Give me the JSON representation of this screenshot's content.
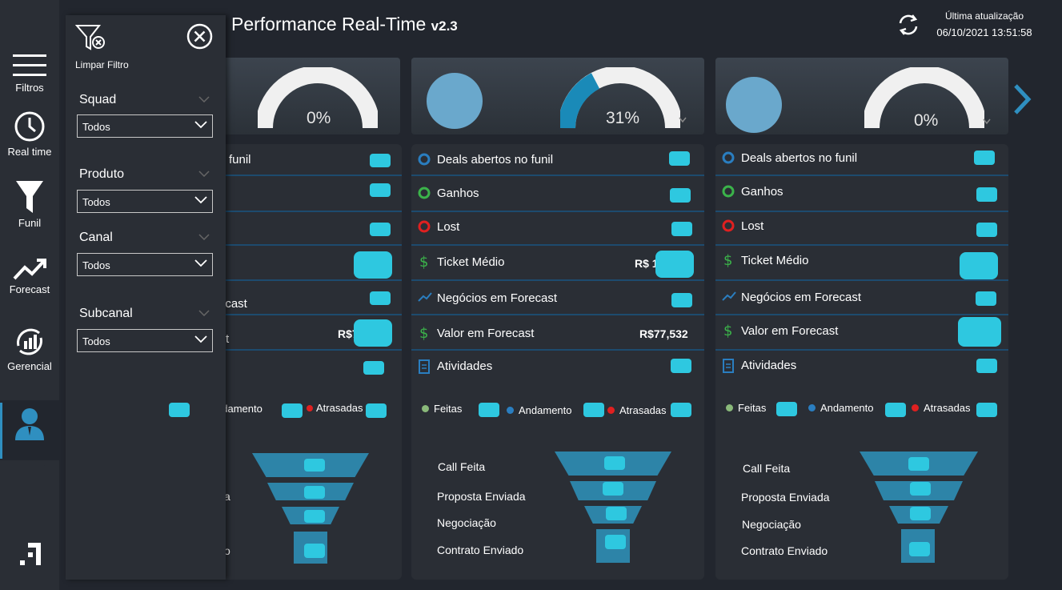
{
  "app": {
    "title": "Performance Real-Time",
    "version": "v2.3",
    "update_label": "Última atualização",
    "update_datetime": "06/10/2021 13:51:58"
  },
  "sidebar": {
    "items": [
      {
        "label": "Filtros",
        "icon": "hamburger-icon"
      },
      {
        "label": "Real time",
        "icon": "clock-icon"
      },
      {
        "label": "Funil",
        "icon": "funnel-icon"
      },
      {
        "label": "Forecast",
        "icon": "trend-up-icon"
      },
      {
        "label": "Gerencial",
        "icon": "chart-cycle-icon"
      },
      {
        "label": "",
        "icon": "user-icon"
      }
    ],
    "logo_icon": "brand-logo-icon"
  },
  "filter_panel": {
    "clear_label": "Limpar Filtro",
    "filters": [
      {
        "label": "Squad",
        "value": "Todos"
      },
      {
        "label": "Produto",
        "value": "Todos"
      },
      {
        "label": "Canal",
        "value": "Todos"
      },
      {
        "label": "Subcanal",
        "value": "Todos"
      }
    ]
  },
  "cards": [
    {
      "gauge_pct": "0%",
      "gauge_value": 0,
      "rows": [
        "funil",
        "",
        "",
        "",
        "ecast",
        "t",
        ""
      ],
      "ticket_value": "",
      "forecast_value": "R$7",
      "legend": [
        "",
        "ndamento",
        "Atrasadas"
      ],
      "funnel": [
        "",
        "a",
        "",
        "o"
      ]
    },
    {
      "gauge_pct": "31%",
      "gauge_value": 31,
      "rows": [
        "Deals abertos no funil",
        "Ganhos",
        "Lost",
        "Ticket Médio",
        "Negócios em Forecast",
        "Valor em Forecast",
        "Atividades"
      ],
      "ticket_value": "R$ 1",
      "forecast_value": "R$77,532",
      "legend": [
        "Feitas",
        "Andamento",
        "Atrasadas"
      ],
      "funnel": [
        "Call Feita",
        "Proposta Enviada",
        "Negociação",
        "Contrato Enviado"
      ]
    },
    {
      "gauge_pct": "0%",
      "gauge_value": 0,
      "rows": [
        "Deals abertos no funil",
        "Ganhos",
        "Lost",
        "Ticket Médio",
        "Negócios em Forecast",
        "Valor em Forecast",
        "Atividades"
      ],
      "ticket_value": "",
      "forecast_value": "",
      "legend": [
        "Feitas",
        "Andamento",
        "Atrasadas"
      ],
      "funnel": [
        "Call Feita",
        "Proposta Enviada",
        "Negociação",
        "Contrato Enviado"
      ]
    }
  ],
  "colors": {
    "accent": "#2ec8e0",
    "gauge": "#1a8ab8",
    "green": "#3bb34a",
    "red": "#e02020",
    "blue": "#2a7ec0"
  }
}
